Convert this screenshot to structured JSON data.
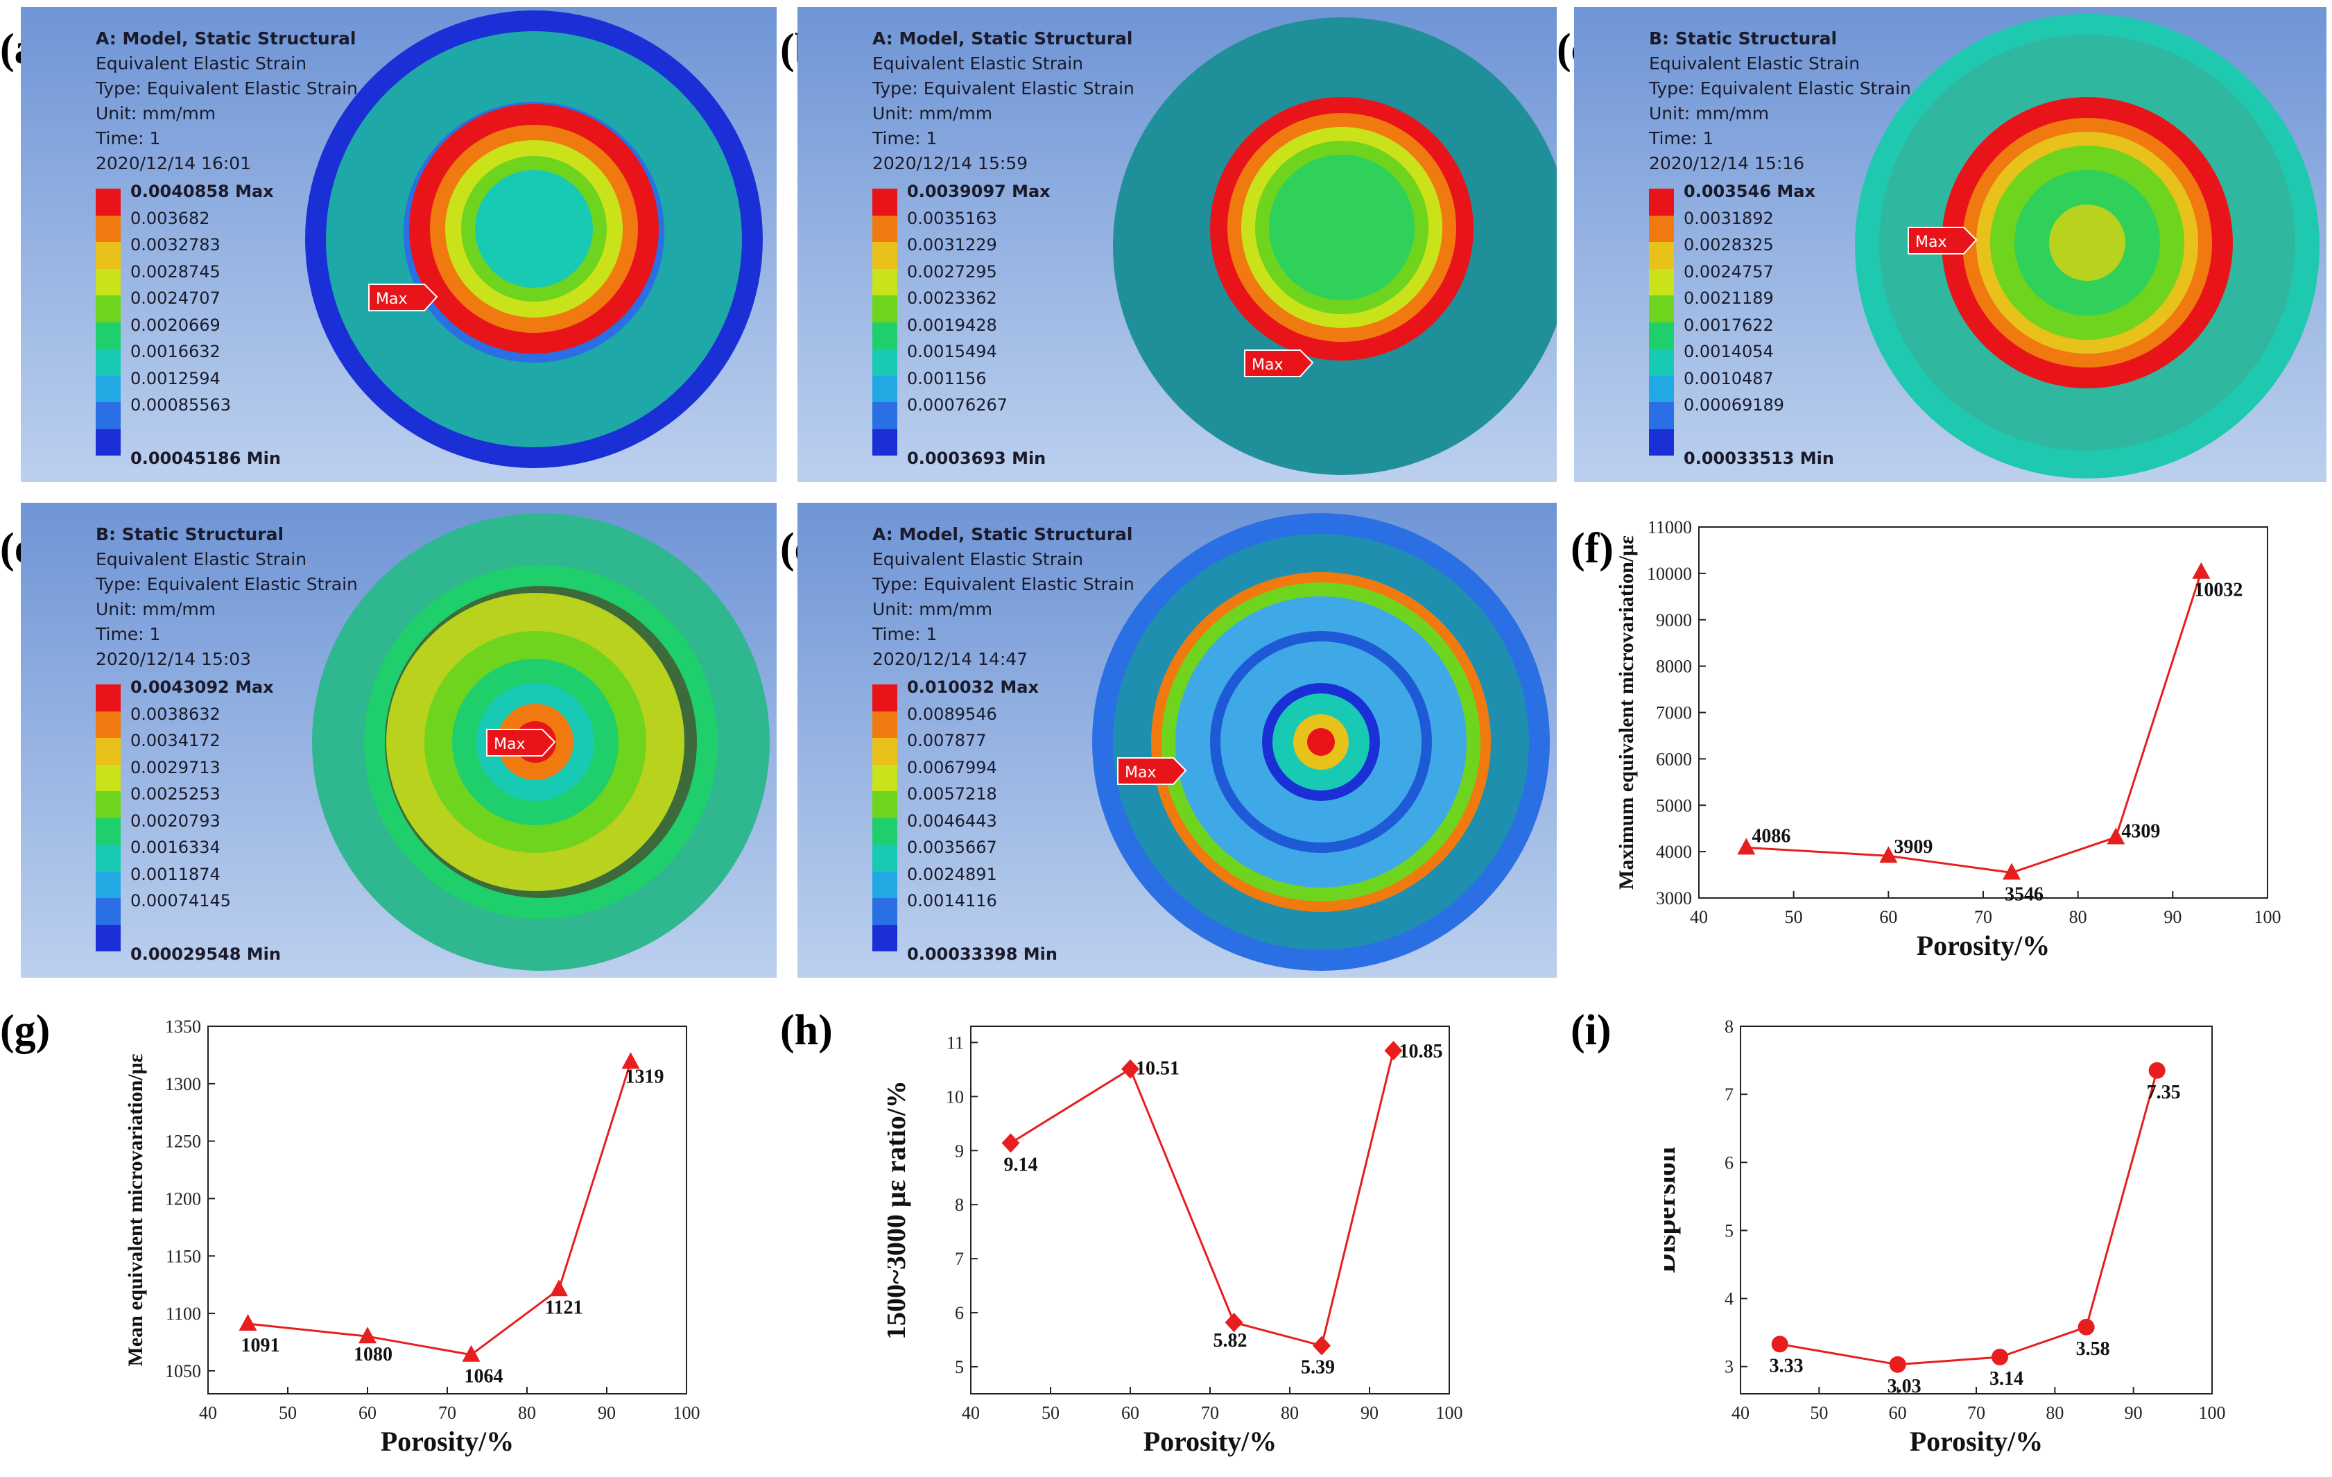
{
  "panel_labels": {
    "a": "(a)",
    "b": "(b)",
    "c": "(c)",
    "d": "(d)",
    "e": "(e)",
    "f": "(f)",
    "g": "(g)",
    "h": "(h)",
    "i": "(i)"
  },
  "legend_colors": [
    "#e8141a",
    "#f07a10",
    "#e9c11b",
    "#c9e21a",
    "#6fd41e",
    "#1fcf6b",
    "#18c9b3",
    "#22a9e4",
    "#2a6fe3",
    "#1b2fd6"
  ],
  "simulations": [
    {
      "id": "a",
      "lines": [
        "A: Model, Static Structural",
        "Equivalent Elastic Strain",
        "Type: Equivalent Elastic Strain",
        "Unit: mm/mm",
        "Time: 1",
        "2020/12/14 16:01"
      ],
      "legend": [
        "0.0040858 Max",
        "0.003682",
        "0.0032783",
        "0.0028745",
        "0.0024707",
        "0.0020669",
        "0.0016632",
        "0.0012594",
        "0.00085563",
        "0.00045186 Min"
      ],
      "max_tag": "Max"
    },
    {
      "id": "b",
      "lines": [
        "A: Model, Static Structural",
        "Equivalent Elastic Strain",
        "Type: Equivalent Elastic Strain",
        "Unit: mm/mm",
        "Time: 1",
        "2020/12/14 15:59"
      ],
      "legend": [
        "0.0039097 Max",
        "0.0035163",
        "0.0031229",
        "0.0027295",
        "0.0023362",
        "0.0019428",
        "0.0015494",
        "0.001156",
        "0.00076267",
        "0.0003693 Min"
      ],
      "max_tag": "Max"
    },
    {
      "id": "c",
      "lines": [
        "B: Static Structural",
        "Equivalent Elastic Strain",
        "Type: Equivalent Elastic Strain",
        "Unit: mm/mm",
        "Time: 1",
        "2020/12/14 15:16"
      ],
      "legend": [
        "0.003546 Max",
        "0.0031892",
        "0.0028325",
        "0.0024757",
        "0.0021189",
        "0.0017622",
        "0.0014054",
        "0.0010487",
        "0.00069189",
        "0.00033513 Min"
      ],
      "max_tag": "Max"
    },
    {
      "id": "d",
      "lines": [
        "B: Static Structural",
        "Equivalent Elastic Strain",
        "Type: Equivalent Elastic Strain",
        "Unit: mm/mm",
        "Time: 1",
        "2020/12/14 15:03"
      ],
      "legend": [
        "0.0043092 Max",
        "0.0038632",
        "0.0034172",
        "0.0029713",
        "0.0025253",
        "0.0020793",
        "0.0016334",
        "0.0011874",
        "0.00074145",
        "0.00029548 Min"
      ],
      "max_tag": "Max"
    },
    {
      "id": "e",
      "lines": [
        "A: Model, Static Structural",
        "Equivalent Elastic Strain",
        "Type: Equivalent Elastic Strain",
        "Unit: mm/mm",
        "Time: 1",
        "2020/12/14 14:47"
      ],
      "legend": [
        "0.010032 Max",
        "0.0089546",
        "0.007877",
        "0.0067994",
        "0.0057218",
        "0.0046443",
        "0.0035667",
        "0.0024891",
        "0.0014116",
        "0.00033398 Min"
      ],
      "max_tag": "Max"
    }
  ],
  "chart_data": [
    {
      "id": "f",
      "type": "line",
      "marker": "triangle",
      "xlabel": "Porosity/%",
      "ylabel": "Maximum equivalent microvariation/με",
      "x": [
        45,
        60,
        73,
        84,
        93
      ],
      "y": [
        4086,
        3909,
        3546,
        4309,
        10032
      ],
      "labels": [
        "4086",
        "3909",
        "3546",
        "4309",
        "10032"
      ],
      "xlim": [
        40,
        100
      ],
      "ylim": [
        3000,
        11000
      ],
      "xticks": [
        40,
        50,
        60,
        70,
        80,
        90,
        100
      ],
      "yticks": [
        3000,
        4000,
        5000,
        6000,
        7000,
        8000,
        9000,
        10000,
        11000
      ],
      "color": "#e81e1e"
    },
    {
      "id": "g",
      "type": "line",
      "marker": "triangle",
      "xlabel": "Porosity/%",
      "ylabel": "Mean equivalent microvariation/με",
      "x": [
        45,
        60,
        73,
        84,
        93
      ],
      "y": [
        1091,
        1080,
        1064,
        1121,
        1319
      ],
      "labels": [
        "1091",
        "1080",
        "1064",
        "1121",
        "1319"
      ],
      "xlim": [
        40,
        100
      ],
      "ylim": [
        1030,
        1350
      ],
      "xticks": [
        40,
        50,
        60,
        70,
        80,
        90,
        100
      ],
      "yticks": [
        1050,
        1100,
        1150,
        1200,
        1250,
        1300,
        1350
      ],
      "color": "#e81e1e"
    },
    {
      "id": "h",
      "type": "line",
      "marker": "diamond",
      "xlabel": "Porosity/%",
      "ylabel": "1500~3000 με ratio/%",
      "x": [
        45,
        60,
        73,
        84,
        93
      ],
      "y": [
        9.14,
        10.51,
        5.82,
        5.39,
        10.85
      ],
      "labels": [
        "9.14",
        "10.51",
        "5.82",
        "5.39",
        "10.85"
      ],
      "xlim": [
        40,
        100
      ],
      "ylim": [
        4.5,
        11.3
      ],
      "xticks": [
        40,
        50,
        60,
        70,
        80,
        90,
        100
      ],
      "yticks": [
        5,
        6,
        7,
        8,
        9,
        10,
        11
      ],
      "color": "#e81e1e"
    },
    {
      "id": "i",
      "type": "line",
      "marker": "circle",
      "xlabel": "Porosity/%",
      "ylabel": "Dispersion",
      "x": [
        45,
        60,
        73,
        84,
        93
      ],
      "y": [
        3.33,
        3.03,
        3.14,
        3.58,
        7.35
      ],
      "labels": [
        "3.33",
        "3.03",
        "3.14",
        "3.58",
        "7.35"
      ],
      "xlim": [
        40,
        100
      ],
      "ylim": [
        2.6,
        8
      ],
      "xticks": [
        40,
        50,
        60,
        70,
        80,
        90,
        100
      ],
      "yticks": [
        3,
        4,
        5,
        6,
        7,
        8
      ],
      "color": "#e81e1e"
    }
  ]
}
